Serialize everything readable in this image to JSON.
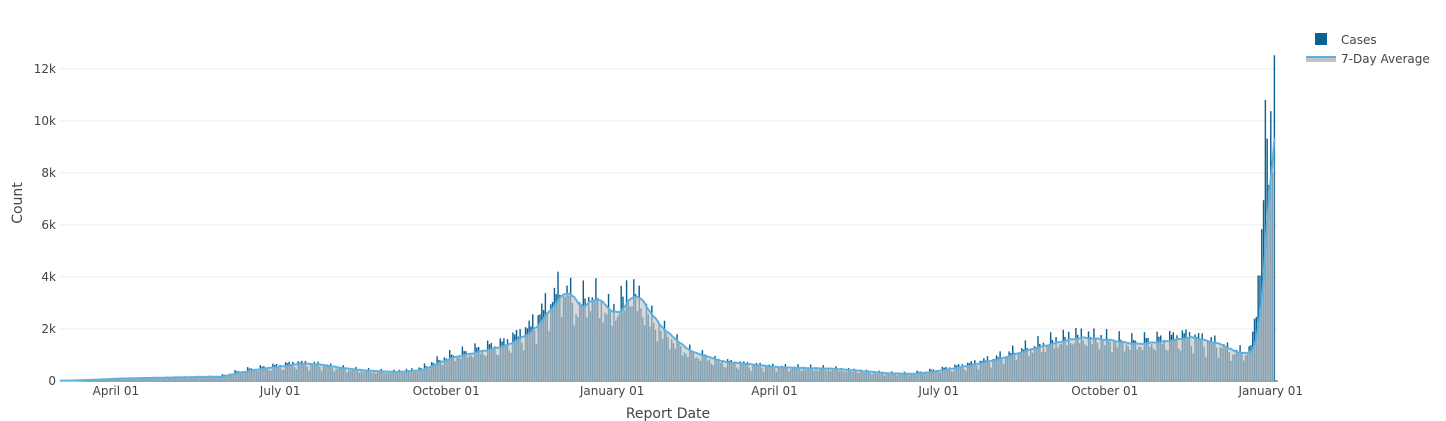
{
  "chart_data": {
    "type": "bar",
    "x_unit": "date",
    "xlabel": "Report Date",
    "ylabel": "Count",
    "x_range": [
      "2020-03-01",
      "2022-01-05"
    ],
    "ylim": [
      0,
      13500
    ],
    "x_ticks": [
      {
        "date": "2020-04-01",
        "label": "April 01"
      },
      {
        "date": "2020-07-01",
        "label": "July 01"
      },
      {
        "date": "2020-10-01",
        "label": "October 01"
      },
      {
        "date": "2021-01-01",
        "label": "January 01"
      },
      {
        "date": "2021-04-01",
        "label": "April 01"
      },
      {
        "date": "2021-07-01",
        "label": "July 01"
      },
      {
        "date": "2021-10-01",
        "label": "October 01"
      },
      {
        "date": "2022-01-01",
        "label": "January 01"
      }
    ],
    "y_ticks": [
      {
        "value": 0,
        "label": "0"
      },
      {
        "value": 2000,
        "label": "2k"
      },
      {
        "value": 4000,
        "label": "4k"
      },
      {
        "value": 6000,
        "label": "6k"
      },
      {
        "value": 8000,
        "label": "8k"
      },
      {
        "value": 10000,
        "label": "10k"
      },
      {
        "value": 12000,
        "label": "12k"
      }
    ],
    "grid": "horizontal",
    "legend": {
      "position": "top-right",
      "entries": [
        "Cases",
        "7-Day Average"
      ]
    },
    "series": [
      {
        "name": "Cases",
        "kind": "bar",
        "color": "#0e6193",
        "daily_from_anchors": true,
        "anchors": [
          [
            "2020-03-01",
            10
          ],
          [
            "2020-03-15",
            40
          ],
          [
            "2020-04-01",
            90
          ],
          [
            "2020-04-15",
            110
          ],
          [
            "2020-05-01",
            130
          ],
          [
            "2020-05-15",
            150
          ],
          [
            "2020-05-28",
            160
          ],
          [
            "2020-06-05",
            300
          ],
          [
            "2020-06-15",
            420
          ],
          [
            "2020-07-01",
            550
          ],
          [
            "2020-07-10",
            640
          ],
          [
            "2020-07-20",
            600
          ],
          [
            "2020-08-01",
            480
          ],
          [
            "2020-08-15",
            380
          ],
          [
            "2020-09-01",
            330
          ],
          [
            "2020-09-15",
            400
          ],
          [
            "2020-10-01",
            850
          ],
          [
            "2020-10-15",
            1050
          ],
          [
            "2020-11-01",
            1300
          ],
          [
            "2020-11-15",
            1800
          ],
          [
            "2020-11-25",
            2600
          ],
          [
            "2020-12-05",
            3400
          ],
          [
            "2020-12-12",
            2600
          ],
          [
            "2020-12-20",
            3100
          ],
          [
            "2021-01-01",
            2400
          ],
          [
            "2021-01-07",
            2900
          ],
          [
            "2021-01-11",
            3300
          ],
          [
            "2021-01-25",
            2000
          ],
          [
            "2021-02-10",
            1100
          ],
          [
            "2021-03-01",
            700
          ],
          [
            "2021-04-01",
            500
          ],
          [
            "2021-05-01",
            450
          ],
          [
            "2021-06-01",
            280
          ],
          [
            "2021-06-15",
            260
          ],
          [
            "2021-07-01",
            400
          ],
          [
            "2021-07-15",
            560
          ],
          [
            "2021-08-01",
            800
          ],
          [
            "2021-08-15",
            1100
          ],
          [
            "2021-09-01",
            1400
          ],
          [
            "2021-09-15",
            1600
          ],
          [
            "2021-10-01",
            1500
          ],
          [
            "2021-10-15",
            1350
          ],
          [
            "2021-11-01",
            1450
          ],
          [
            "2021-11-15",
            1600
          ],
          [
            "2021-12-01",
            1350
          ],
          [
            "2021-12-10",
            1050
          ],
          [
            "2021-12-18",
            1000
          ],
          [
            "2021-12-22",
            1400
          ],
          [
            "2021-12-24",
            3000
          ],
          [
            "2021-12-27",
            5500
          ],
          [
            "2021-12-29",
            8000
          ],
          [
            "2021-12-31",
            8800
          ],
          [
            "2022-01-02",
            9600
          ],
          [
            "2022-01-03",
            12500
          ]
        ]
      },
      {
        "name": "7-Day Average",
        "kind": "area",
        "line_color": "#5db2e0",
        "fill_color": "#c4c4c4",
        "smoothing_window_days": 7
      }
    ]
  }
}
